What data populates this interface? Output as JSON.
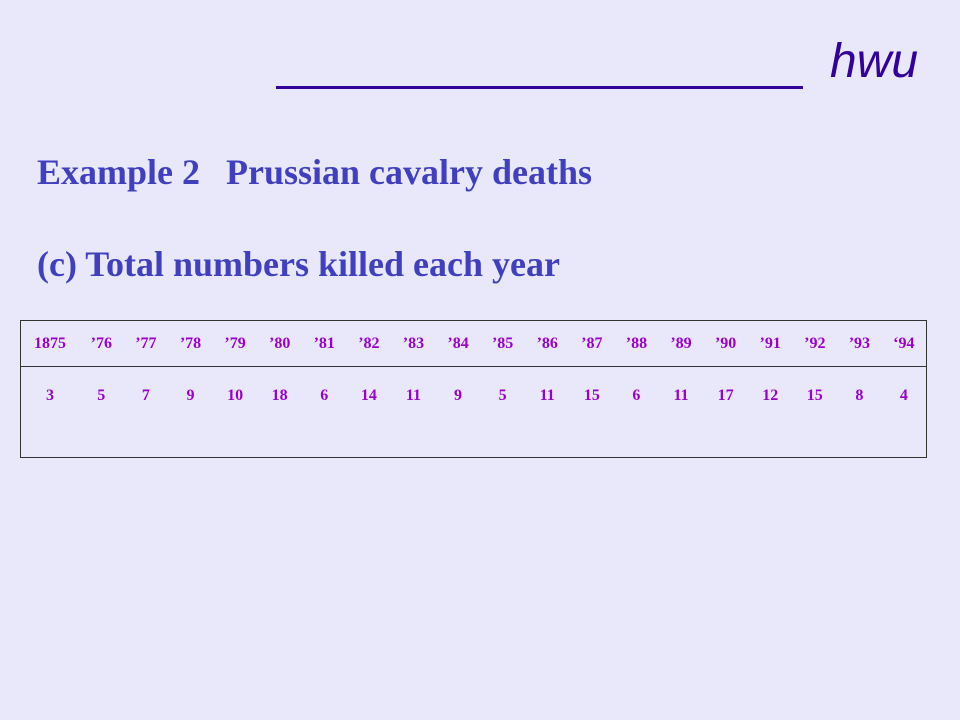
{
  "header": {
    "brand": "hwu"
  },
  "slide": {
    "title_part1": "Example 2",
    "title_part2": "Prussian cavalry deaths",
    "subtitle": "(c) Total numbers killed each year"
  },
  "table": {
    "years": [
      "1875",
      "’76",
      "’77",
      "’78",
      "’79",
      "’80",
      "’81",
      "’82",
      "’83",
      "’84",
      "’85",
      "’86",
      "’87",
      "’88",
      "’89",
      "’90",
      "’91",
      "’92",
      "’93",
      "‘94"
    ],
    "counts": [
      "3",
      "5",
      "7",
      "9",
      "10",
      "18",
      "6",
      "14",
      "11",
      "9",
      "5",
      "11",
      "15",
      "6",
      "11",
      "17",
      "12",
      "15",
      "8",
      "4"
    ]
  },
  "colors": {
    "background": "#e8e8fa",
    "header": "#330099",
    "heading": "#3f3fbf",
    "table_text": "#9900cc"
  }
}
